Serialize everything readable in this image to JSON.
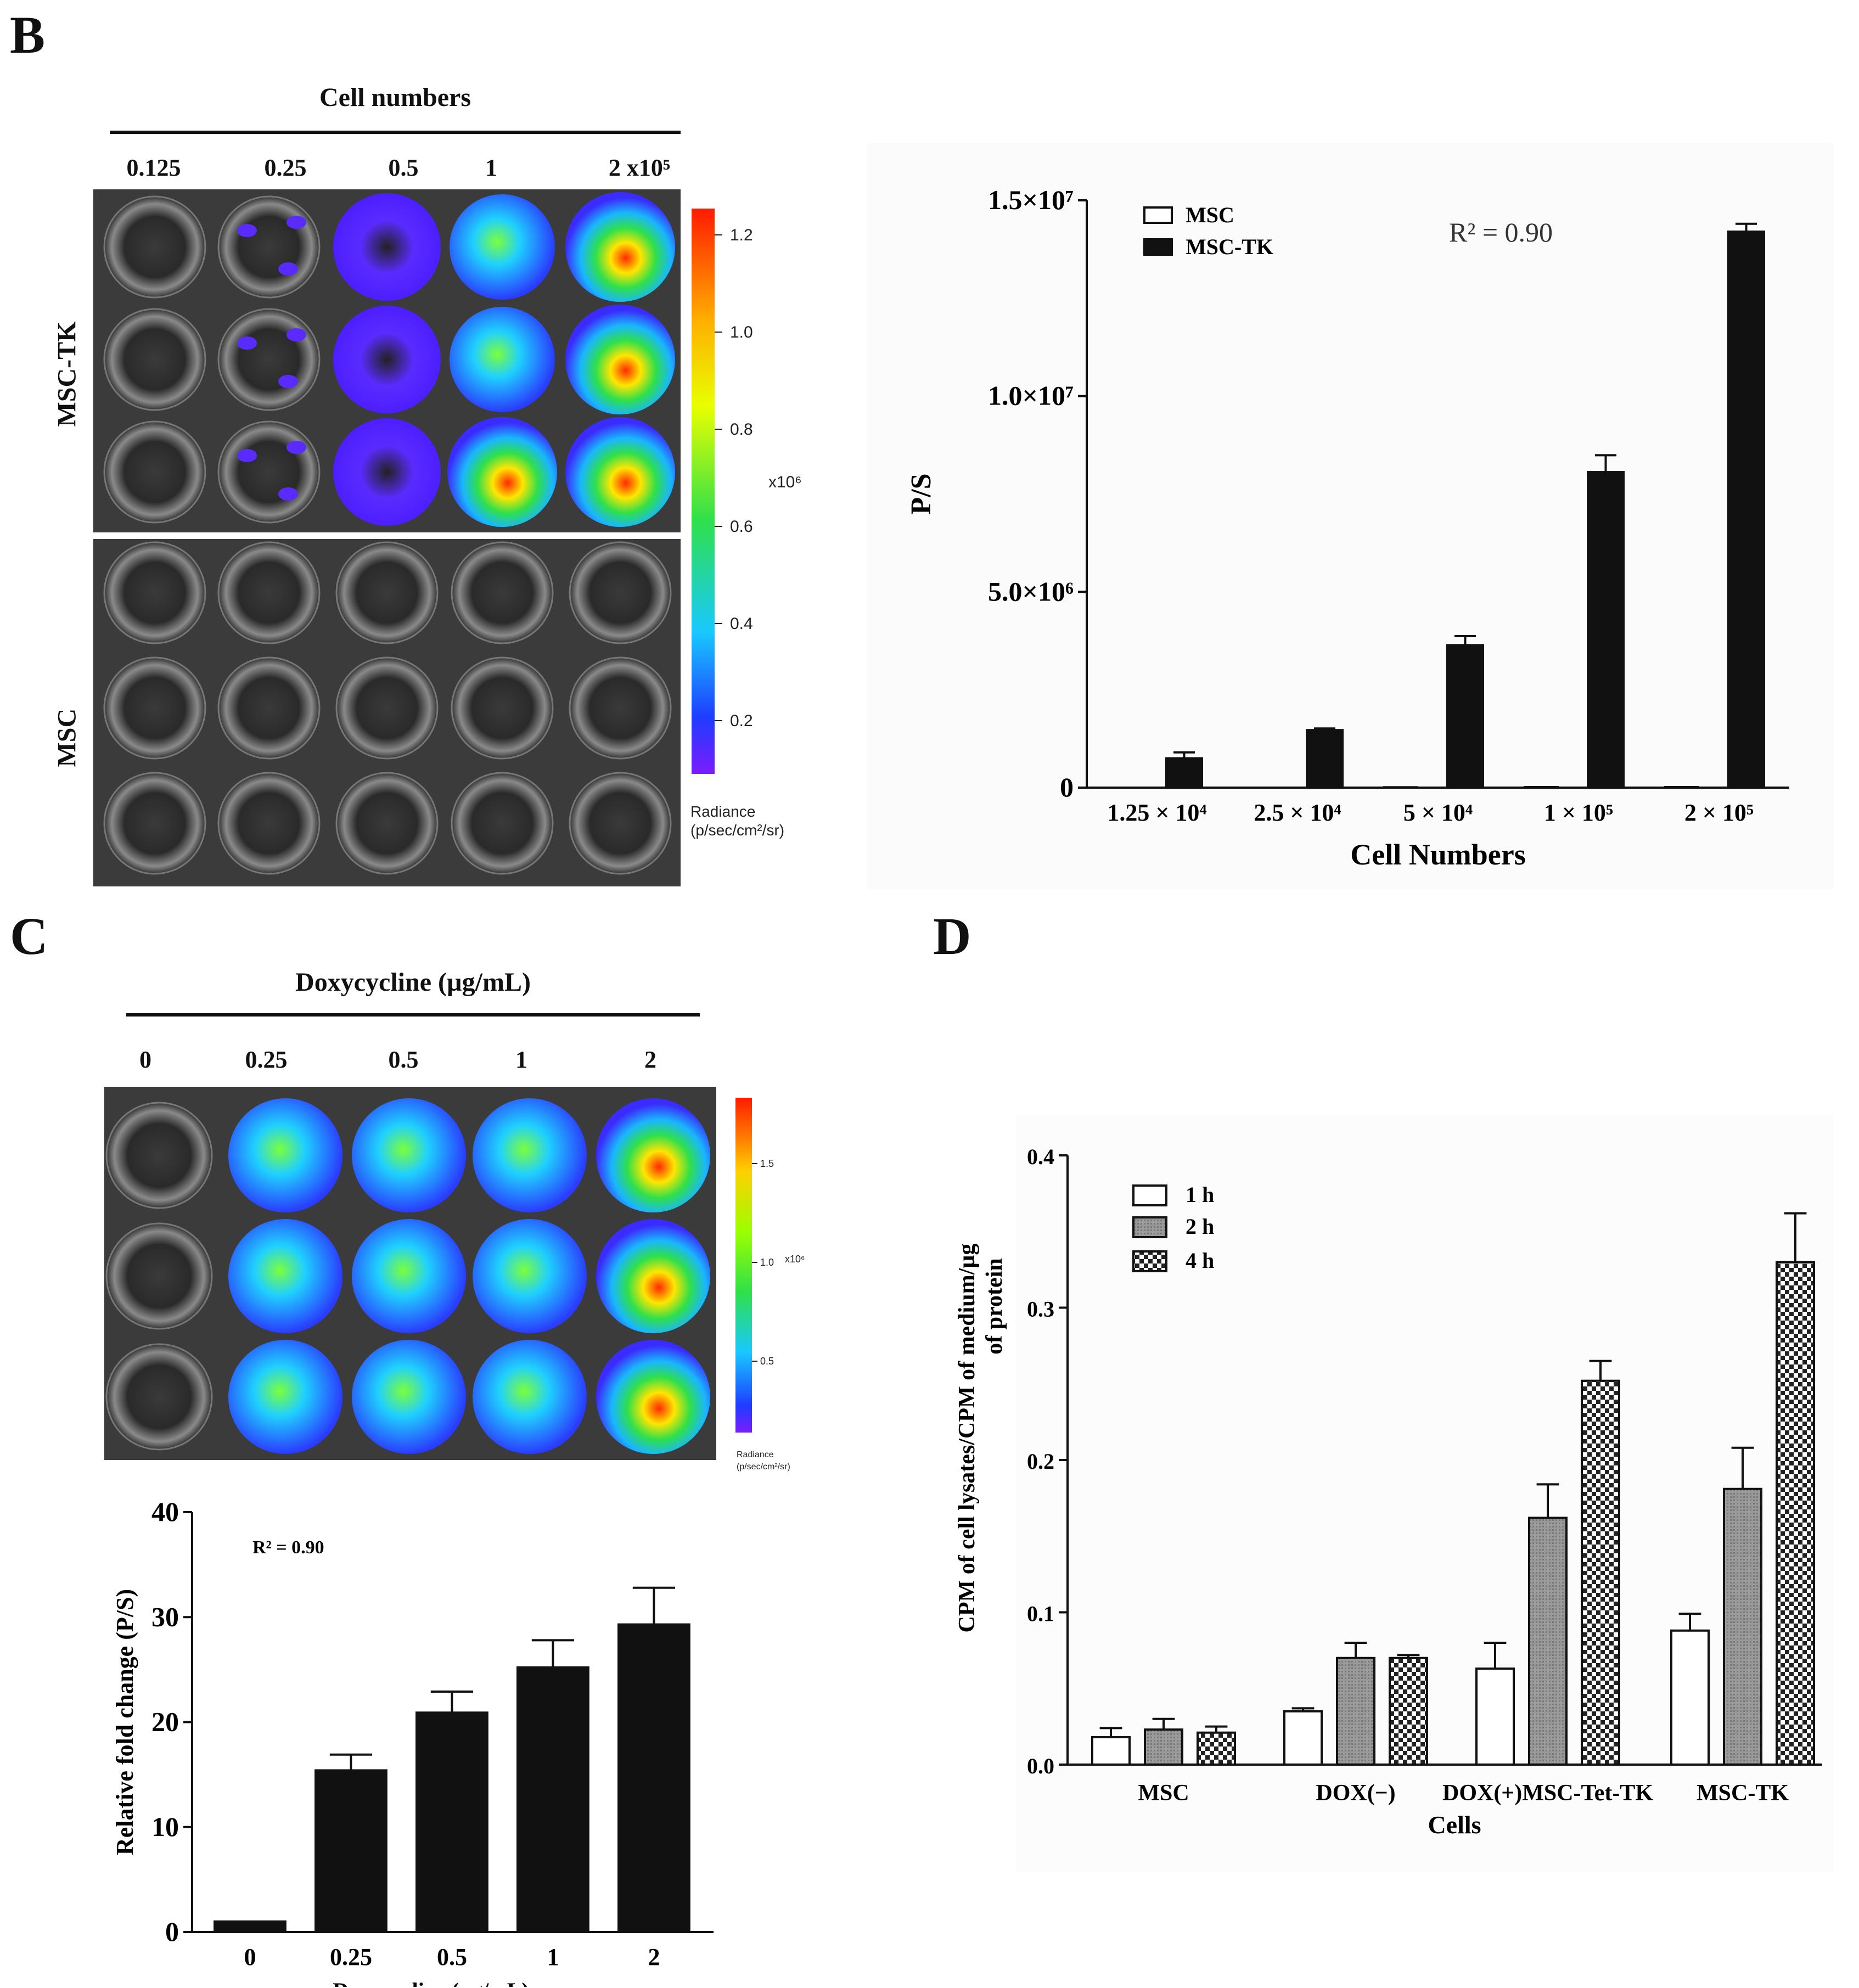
{
  "panels": {
    "B": {
      "letter": "B",
      "image": {
        "header": "Cell numbers",
        "columns": [
          "0.125",
          "0.25",
          "0.5",
          "1",
          "2 x10⁵"
        ],
        "rows": [
          "MSC-TK",
          "MSC"
        ],
        "colorbar": {
          "ticks": [
            "0.2",
            "0.4",
            "0.6",
            "0.8",
            "1.0",
            "1.2"
          ],
          "multiplier": "x10⁶",
          "title_line1": "Radiance",
          "title_line2": "(p/sec/cm²/sr)"
        }
      }
    },
    "C": {
      "letter": "C",
      "image": {
        "header": "Doxycycline (µg/mL)",
        "columns": [
          "0",
          "0.25",
          "0.5",
          "1",
          "2"
        ],
        "colorbar": {
          "ticks": [
            "0.5",
            "1.0",
            "1.5"
          ],
          "multiplier": "x10⁶",
          "title_line1": "Radiance",
          "title_line2": "(p/sec/cm²/sr)"
        }
      }
    },
    "D": {
      "letter": "D"
    }
  },
  "chart_data": [
    {
      "id": "B-bar",
      "type": "bar",
      "categories": [
        "1.25 × 10⁴",
        "2.5 × 10⁴",
        "5 × 10⁴",
        "1 × 10⁵",
        "2 × 10⁵"
      ],
      "series": [
        {
          "name": "MSC",
          "values": [
            0,
            0,
            10000,
            15000,
            15000
          ],
          "errors": [
            0,
            0,
            0,
            0,
            0
          ],
          "color": "#ffffff"
        },
        {
          "name": "MSC-TK",
          "values": [
            750000,
            1470000,
            3640000,
            8060000,
            14200000
          ],
          "errors": [
            150000,
            40000,
            230000,
            430000,
            200000
          ],
          "color": "#111111"
        }
      ],
      "xlabel": "Cell Numbers",
      "ylabel": "P/S",
      "yticks": [
        "0",
        "5.0×10⁶",
        "1.0×10⁷",
        "1.5×10⁷"
      ],
      "ytick_values": [
        0,
        5000000,
        10000000,
        15000000
      ],
      "ylim": [
        0,
        15000000
      ],
      "annotation": "R² = 0.90",
      "legend": "top-left"
    },
    {
      "id": "C-bar",
      "type": "bar",
      "categories": [
        "0",
        "0.25",
        "0.5",
        "1",
        "2"
      ],
      "series": [
        {
          "values": [
            1,
            15.4,
            20.9,
            25.2,
            29.3
          ],
          "errors": [
            0,
            1.5,
            2.0,
            2.6,
            3.5
          ],
          "color": "#111111"
        }
      ],
      "xlabel": "Doxycycline (µg/mL)",
      "ylabel": "Relative fold change (P/S)",
      "yticks": [
        "0",
        "10",
        "20",
        "30",
        "40"
      ],
      "ytick_values": [
        0,
        10,
        20,
        30,
        40
      ],
      "ylim": [
        0,
        40
      ],
      "annotation": "R² = 0.90"
    },
    {
      "id": "D-bar",
      "type": "bar",
      "categories": [
        "MSC",
        "DOX(−)",
        "DOX(+)MSC-Tet-TK",
        "MSC-TK"
      ],
      "series": [
        {
          "name": "1 h",
          "values": [
            0.018,
            0.035,
            0.063,
            0.088
          ],
          "errors": [
            0.006,
            0.002,
            0.017,
            0.011
          ],
          "pattern": "white"
        },
        {
          "name": "2 h",
          "values": [
            0.023,
            0.07,
            0.162,
            0.181
          ],
          "errors": [
            0.007,
            0.01,
            0.022,
            0.027
          ],
          "pattern": "gray"
        },
        {
          "name": "4 h",
          "values": [
            0.021,
            0.07,
            0.252,
            0.33
          ],
          "errors": [
            0.004,
            0.002,
            0.013,
            0.032
          ],
          "pattern": "check"
        }
      ],
      "xlabel": "Cells",
      "ylabel_line1": "CPM of cell lysates/CPM of medium/µg",
      "ylabel_line2": "of protein",
      "yticks": [
        "0.0",
        "0.1",
        "0.2",
        "0.3",
        "0.4"
      ],
      "ytick_values": [
        0,
        0.1,
        0.2,
        0.3,
        0.4
      ],
      "ylim": [
        0,
        0.4
      ],
      "legend": "top-left"
    }
  ]
}
